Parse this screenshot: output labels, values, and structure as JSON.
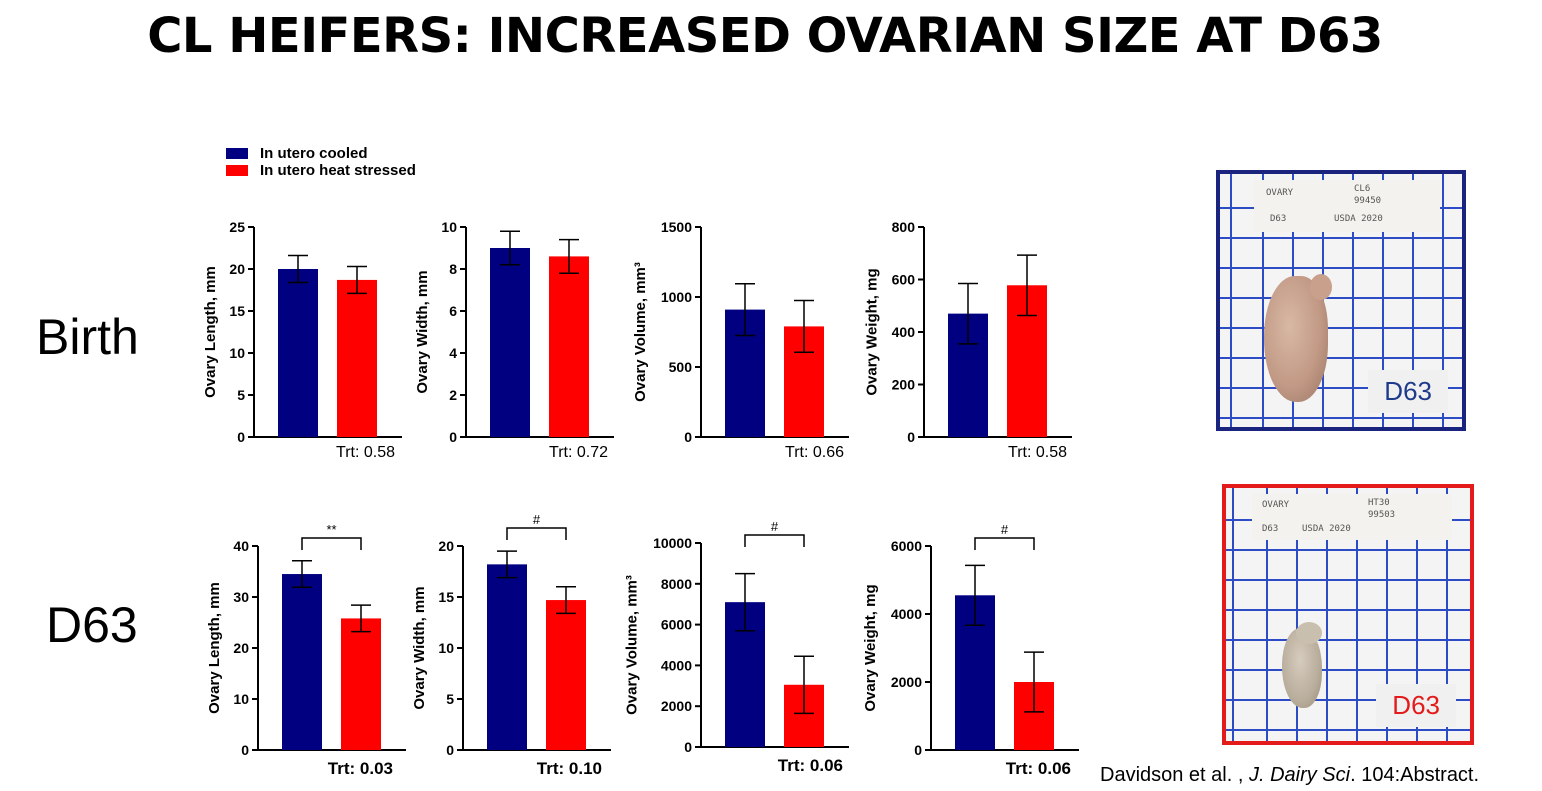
{
  "title": "CL HEIFERS: INCREASED OVARIAN SIZE AT D63",
  "row_labels": [
    "Birth",
    "D63"
  ],
  "legend": [
    {
      "label": "In utero cooled",
      "color": "#000080"
    },
    {
      "label": "In utero heat stressed",
      "color": "#ff0000"
    }
  ],
  "chart_data": [
    {
      "type": "bar",
      "row": "Birth",
      "ylabel": "Ovary Length, mm",
      "ylim": [
        0,
        25
      ],
      "yticks": [
        0,
        5,
        10,
        15,
        20,
        25
      ],
      "values": [
        20.0,
        18.7
      ],
      "errors": [
        1.6,
        1.6
      ],
      "significance": "",
      "trt": "Trt: 0.58",
      "trt_bold": false
    },
    {
      "type": "bar",
      "row": "Birth",
      "ylabel": "Ovary Width, mm",
      "ylim": [
        0,
        10
      ],
      "yticks": [
        0,
        2,
        4,
        6,
        8,
        10
      ],
      "values": [
        9.0,
        8.6
      ],
      "errors": [
        0.8,
        0.8
      ],
      "significance": "",
      "trt": "Trt: 0.72",
      "trt_bold": false
    },
    {
      "type": "bar",
      "row": "Birth",
      "ylabel": "Ovary Volume, mm³",
      "ylim": [
        0,
        1500
      ],
      "yticks": [
        0,
        500,
        1000,
        1500
      ],
      "values": [
        910,
        790
      ],
      "errors": [
        185,
        185
      ],
      "significance": "",
      "trt": "Trt: 0.66",
      "trt_bold": false
    },
    {
      "type": "bar",
      "row": "Birth",
      "ylabel": "Ovary Weight, mg",
      "ylim": [
        0,
        800
      ],
      "yticks": [
        0,
        200,
        400,
        600,
        800
      ],
      "values": [
        470,
        578
      ],
      "errors": [
        115,
        115
      ],
      "significance": "",
      "trt": "Trt: 0.58",
      "trt_bold": false
    },
    {
      "type": "bar",
      "row": "D63",
      "ylabel": "Ovary Length, mm",
      "ylim": [
        0,
        40
      ],
      "yticks": [
        0,
        10,
        20,
        30,
        40
      ],
      "values": [
        34.5,
        25.8
      ],
      "errors": [
        2.6,
        2.6
      ],
      "significance": "**",
      "trt": "Trt: 0.03",
      "trt_bold": true
    },
    {
      "type": "bar",
      "row": "D63",
      "ylabel": "Ovary Width, mm",
      "ylim": [
        0,
        20
      ],
      "yticks": [
        0,
        5,
        10,
        15,
        20
      ],
      "values": [
        18.2,
        14.7
      ],
      "errors": [
        1.3,
        1.3
      ],
      "significance": "#",
      "trt": "Trt: 0.10",
      "trt_bold": true
    },
    {
      "type": "bar",
      "row": "D63",
      "ylabel": "Ovary Volume, mm³",
      "ylim": [
        0,
        10000
      ],
      "yticks": [
        0,
        2000,
        4000,
        6000,
        8000,
        10000
      ],
      "values": [
        7100,
        3050
      ],
      "errors": [
        1400,
        1400
      ],
      "significance": "#",
      "trt": "Trt: 0.06",
      "trt_bold": true
    },
    {
      "type": "bar",
      "row": "D63",
      "ylabel": "Ovary Weight, mg",
      "ylim": [
        0,
        6000
      ],
      "yticks": [
        0,
        2000,
        4000,
        6000
      ],
      "values": [
        4550,
        2000
      ],
      "errors": [
        880,
        880
      ],
      "significance": "#",
      "trt": "Trt: 0.06",
      "trt_bold": true
    }
  ],
  "photos": [
    {
      "label": "D63",
      "label_color": "#1f3a8a",
      "frame_color": "#1a237e",
      "card_lines": [
        "OVARY",
        "CL6",
        "99450",
        "D63",
        "USDA 2020"
      ]
    },
    {
      "label": "D63",
      "label_color": "#e31b1b",
      "frame_color": "#e31b1b",
      "card_lines": [
        "OVARY",
        "HT30",
        "99503",
        "D63",
        "USDA 2020"
      ]
    }
  ],
  "citation": {
    "authors": "Davidson et al. , ",
    "journal": "J. Dairy Sci",
    "rest": ". 104:Abstract."
  }
}
